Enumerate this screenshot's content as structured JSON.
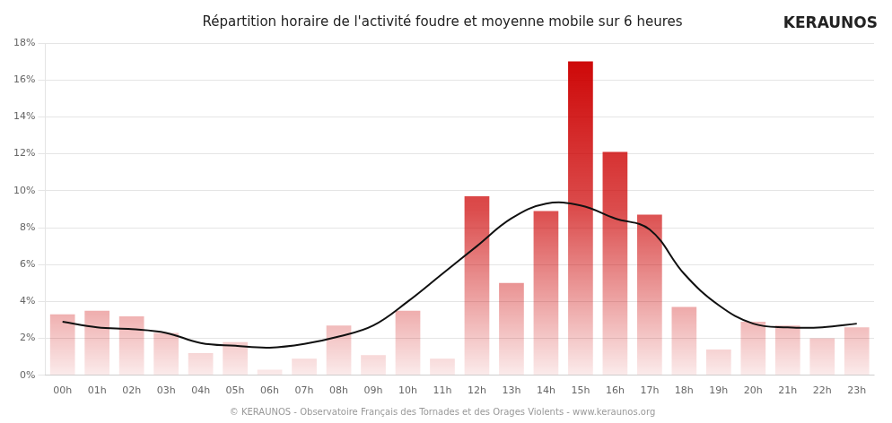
{
  "chart_data": {
    "type": "bar",
    "title": "Répartition horaire de l'activité foudre et moyenne mobile sur 6 heures",
    "annotations": [
      "KERAUNOS",
      "© KERAUNOS - Observatoire Français des Tornades et des Orages Violents - www.keraunos.org"
    ],
    "categories": [
      "00h",
      "01h",
      "02h",
      "03h",
      "04h",
      "05h",
      "06h",
      "07h",
      "08h",
      "09h",
      "10h",
      "11h",
      "12h",
      "13h",
      "14h",
      "15h",
      "16h",
      "17h",
      "18h",
      "19h",
      "20h",
      "21h",
      "22h",
      "23h"
    ],
    "series": [
      {
        "type": "bar",
        "color": "#cc0000",
        "values": [
          3.3,
          3.5,
          3.2,
          2.3,
          1.2,
          1.8,
          0.3,
          0.9,
          2.7,
          1.1,
          3.5,
          0.9,
          9.7,
          5.0,
          8.9,
          17.0,
          12.1,
          8.7,
          3.7,
          1.4,
          2.9,
          2.7,
          2.0,
          2.6
        ]
      },
      {
        "type": "line",
        "color": "#111111",
        "values": [
          2.9,
          2.6,
          2.5,
          2.3,
          1.75,
          1.6,
          1.5,
          1.7,
          2.1,
          2.7,
          4.0,
          5.5,
          7.0,
          8.5,
          9.3,
          9.2,
          8.5,
          7.9,
          5.5,
          3.8,
          2.8,
          2.6,
          2.6,
          2.8
        ]
      }
    ],
    "ylim": [
      0,
      18
    ],
    "yticks": [
      {
        "value": 0,
        "label": "0%"
      },
      {
        "value": 2,
        "label": "2%"
      },
      {
        "value": 4,
        "label": "4%"
      },
      {
        "value": 6,
        "label": "6%"
      },
      {
        "value": 8,
        "label": "8%"
      },
      {
        "value": 10,
        "label": "10%"
      },
      {
        "value": 12,
        "label": "12%"
      },
      {
        "value": 14,
        "label": "14%"
      },
      {
        "value": 16,
        "label": "16%"
      },
      {
        "value": 18,
        "label": "18%"
      }
    ],
    "grid": true
  }
}
